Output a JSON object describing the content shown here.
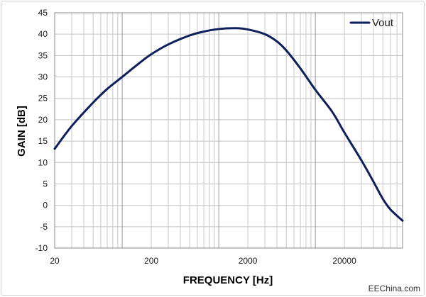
{
  "chart_data": {
    "type": "line",
    "title": "",
    "xlabel": "FREQUENCY [Hz]",
    "ylabel": "GAIN [dB]",
    "x_scale": "log",
    "xlim": [
      20,
      80000
    ],
    "ylim": [
      -10,
      45
    ],
    "x_ticks": [
      20,
      200,
      2000,
      20000
    ],
    "x_tick_labels": [
      "20",
      "200",
      "2000",
      "20000"
    ],
    "y_ticks": [
      -10,
      -5,
      0,
      5,
      10,
      15,
      20,
      25,
      30,
      35,
      40,
      45
    ],
    "grid": true,
    "legend_position": "top-right",
    "series": [
      {
        "name": "Vout",
        "color": "#0d1f5c",
        "x": [
          20,
          30,
          50,
          70,
          100,
          150,
          200,
          300,
          500,
          700,
          1000,
          1500,
          2000,
          3000,
          4000,
          5000,
          7000,
          10000,
          15000,
          20000,
          30000,
          40000,
          50000,
          60000,
          80000
        ],
        "y": [
          13.2,
          18.5,
          24.0,
          27.2,
          30.0,
          33.2,
          35.3,
          37.6,
          39.7,
          40.6,
          41.2,
          41.4,
          41.1,
          40.0,
          38.3,
          36.2,
          32.0,
          27.0,
          21.8,
          17.0,
          10.5,
          5.5,
          1.5,
          -1.0,
          -3.6
        ]
      }
    ]
  },
  "watermark": "EEChina.com"
}
